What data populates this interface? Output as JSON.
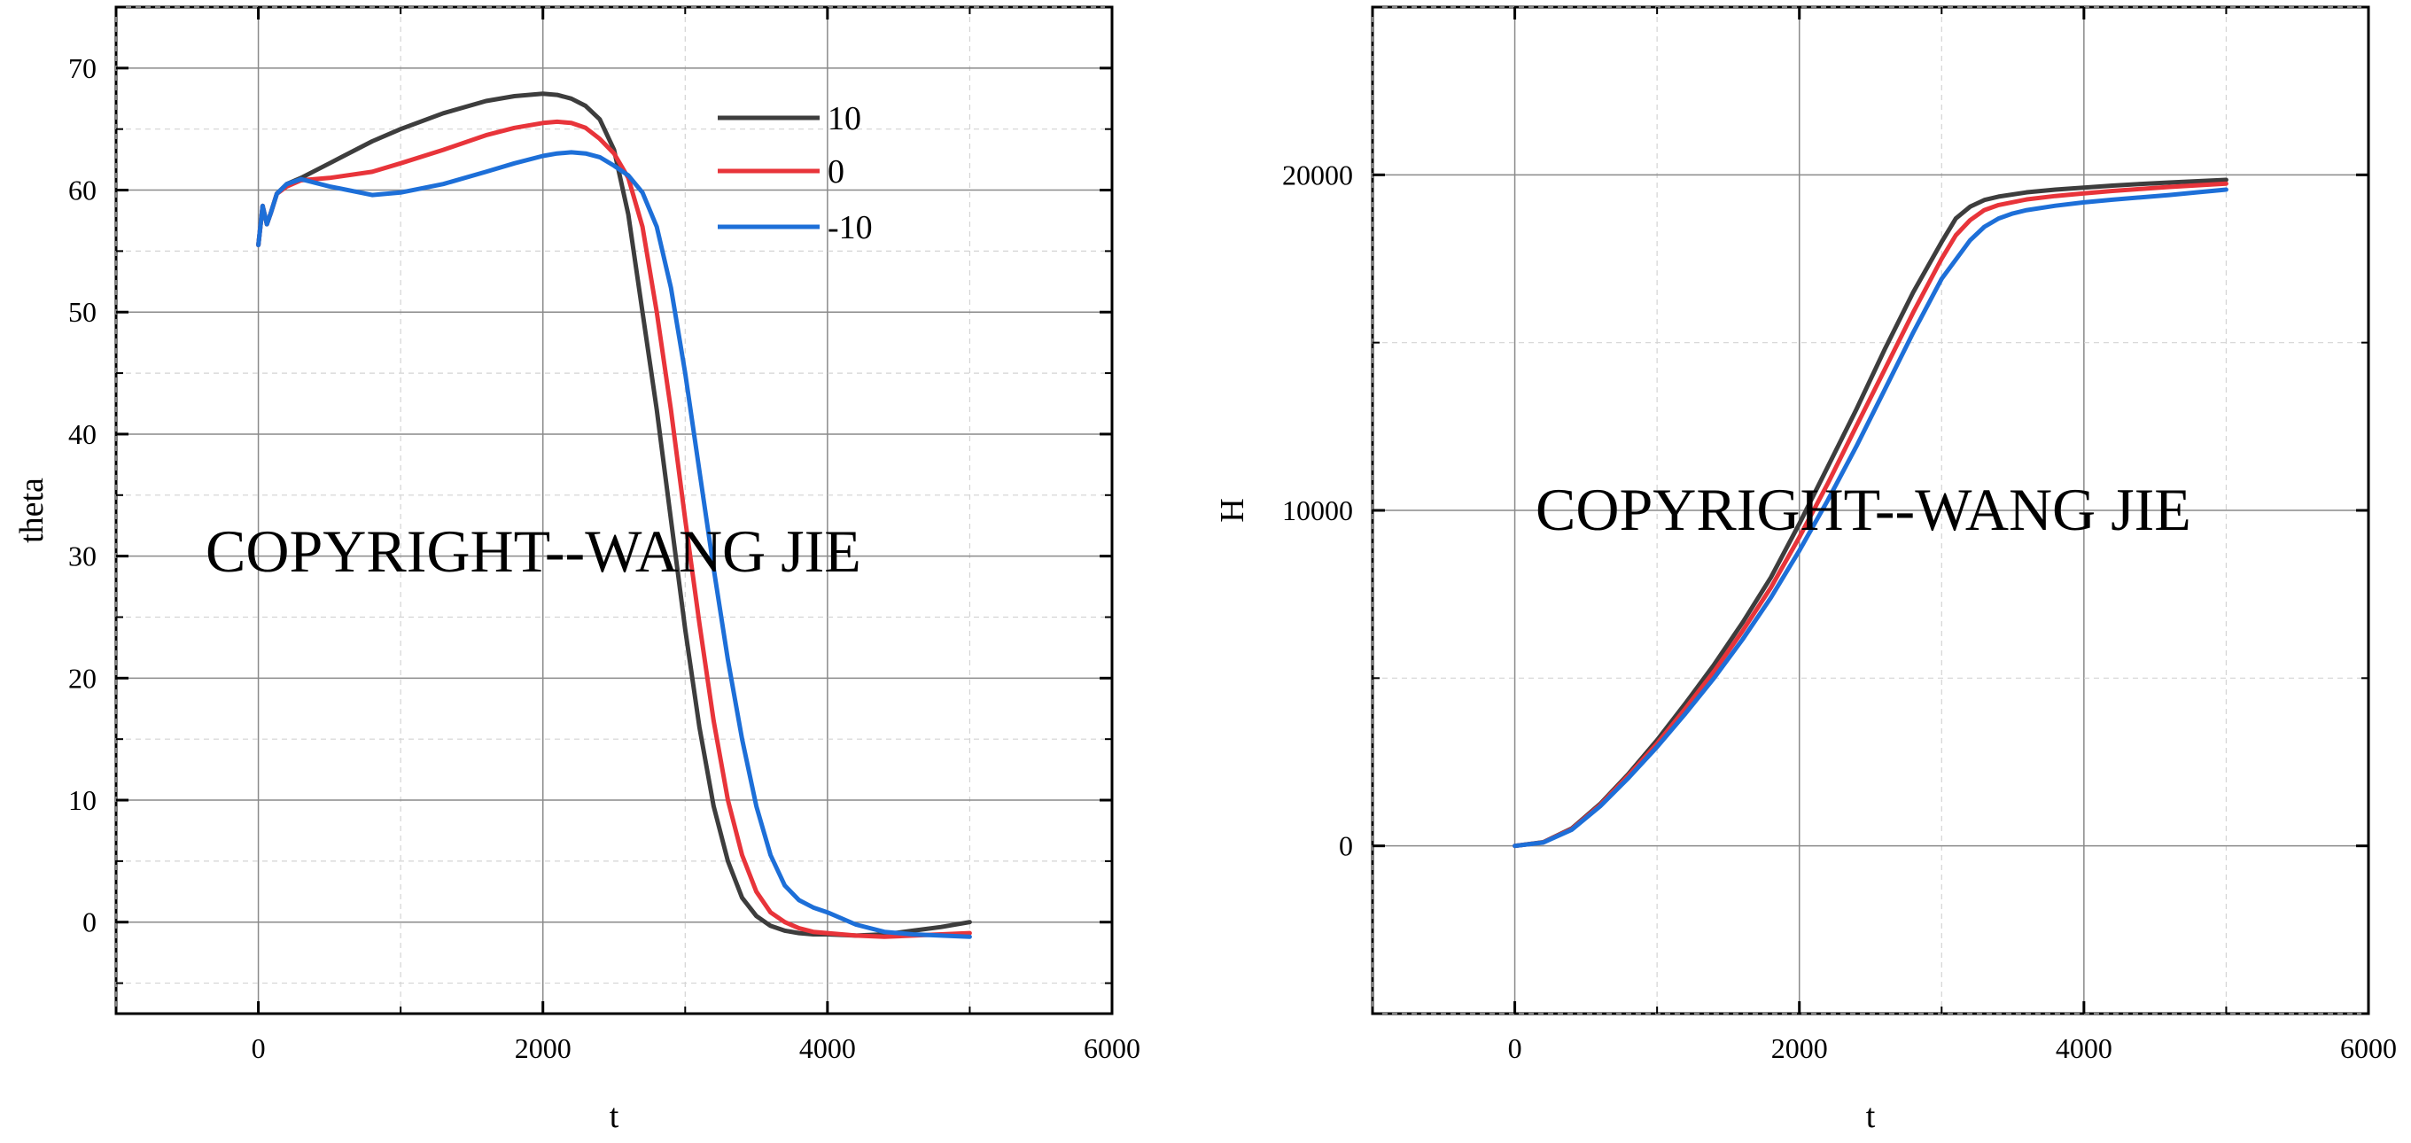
{
  "watermark": "COPYRIGHT--WANG JIE",
  "chart_data": [
    {
      "type": "line",
      "xlabel": "t",
      "ylabel": "theta",
      "xlim": [
        -1000,
        6000
      ],
      "ylim": [
        -7.5,
        75
      ],
      "xticks": [
        0,
        2000,
        4000,
        6000
      ],
      "yticks": [
        0,
        10,
        20,
        30,
        40,
        50,
        60,
        70
      ],
      "grid": true,
      "legend_position": "top-right",
      "series": [
        {
          "name": "10",
          "color": "#3d3d3d",
          "x": [
            0,
            30,
            60,
            90,
            130,
            200,
            300,
            500,
            800,
            1000,
            1300,
            1600,
            1800,
            2000,
            2100,
            2200,
            2300,
            2400,
            2500,
            2600,
            2700,
            2800,
            2900,
            3000,
            3100,
            3200,
            3300,
            3400,
            3500,
            3600,
            3700,
            3800,
            3900,
            4000,
            4200,
            4400,
            4600,
            4800,
            5000
          ],
          "y": [
            55.5,
            58.7,
            57.2,
            58.2,
            59.7,
            60.5,
            61.0,
            62.2,
            64.0,
            65.0,
            66.3,
            67.3,
            67.7,
            67.9,
            67.8,
            67.5,
            66.9,
            65.8,
            63.3,
            58.0,
            50.0,
            42.0,
            33.0,
            24.0,
            16.0,
            9.5,
            5.0,
            2.0,
            0.5,
            -0.3,
            -0.7,
            -0.9,
            -1.0,
            -1.0,
            -1.1,
            -1.0,
            -0.7,
            -0.4,
            0.0
          ]
        },
        {
          "name": "0",
          "color": "#e8343a",
          "x": [
            0,
            30,
            60,
            90,
            130,
            200,
            300,
            500,
            800,
            1000,
            1300,
            1600,
            1800,
            2000,
            2100,
            2200,
            2300,
            2400,
            2500,
            2600,
            2700,
            2800,
            2900,
            3000,
            3100,
            3200,
            3300,
            3400,
            3500,
            3600,
            3700,
            3800,
            3900,
            4000,
            4200,
            4400,
            4600,
            4800,
            5000
          ],
          "y": [
            55.5,
            58.7,
            57.2,
            58.2,
            59.7,
            60.3,
            60.8,
            61.0,
            61.5,
            62.2,
            63.3,
            64.5,
            65.1,
            65.5,
            65.6,
            65.5,
            65.1,
            64.2,
            63.0,
            61.0,
            57.0,
            50.0,
            42.0,
            33.0,
            24.5,
            16.5,
            10.0,
            5.5,
            2.5,
            0.8,
            0.0,
            -0.5,
            -0.8,
            -0.9,
            -1.1,
            -1.2,
            -1.1,
            -1.0,
            -0.9
          ]
        },
        {
          "name": "-10",
          "color": "#1d6fd8",
          "x": [
            0,
            30,
            60,
            90,
            130,
            200,
            300,
            500,
            800,
            1000,
            1300,
            1600,
            1800,
            2000,
            2100,
            2200,
            2300,
            2400,
            2500,
            2600,
            2700,
            2800,
            2900,
            3000,
            3100,
            3200,
            3300,
            3400,
            3500,
            3600,
            3700,
            3800,
            3900,
            4000,
            4200,
            4400,
            4600,
            4800,
            5000
          ],
          "y": [
            55.5,
            58.7,
            57.2,
            58.2,
            59.7,
            60.5,
            60.9,
            60.3,
            59.6,
            59.8,
            60.5,
            61.5,
            62.2,
            62.8,
            63.0,
            63.1,
            63.0,
            62.7,
            62.0,
            61.2,
            59.8,
            57.0,
            52.0,
            45.0,
            37.0,
            29.0,
            21.5,
            15.0,
            9.5,
            5.5,
            3.0,
            1.8,
            1.2,
            0.8,
            -0.2,
            -0.8,
            -1.0,
            -1.1,
            -1.2
          ]
        }
      ]
    },
    {
      "type": "line",
      "xlabel": "t",
      "ylabel": "H",
      "xlim": [
        -1000,
        6000
      ],
      "ylim": [
        -5000,
        25000
      ],
      "xticks": [
        0,
        2000,
        4000,
        6000
      ],
      "yticks": [
        0,
        10000,
        20000
      ],
      "grid": true,
      "series": [
        {
          "color": "#3d3d3d",
          "x": [
            0,
            200,
            400,
            600,
            800,
            1000,
            1200,
            1400,
            1600,
            1800,
            2000,
            2200,
            2400,
            2600,
            2800,
            3000,
            3100,
            3200,
            3300,
            3400,
            3600,
            3800,
            4000,
            4200,
            4400,
            4600,
            4800,
            5000
          ],
          "y": [
            0,
            110,
            520,
            1250,
            2150,
            3150,
            4250,
            5400,
            6650,
            8000,
            9600,
            11300,
            13000,
            14800,
            16500,
            18000,
            18700,
            19050,
            19250,
            19350,
            19480,
            19560,
            19620,
            19680,
            19730,
            19770,
            19810,
            19850
          ]
        },
        {
          "color": "#e8343a",
          "x": [
            0,
            200,
            400,
            600,
            800,
            1000,
            1200,
            1400,
            1600,
            1800,
            2000,
            2200,
            2400,
            2600,
            2800,
            3000,
            3100,
            3200,
            3300,
            3400,
            3600,
            3800,
            4000,
            4200,
            4400,
            4600,
            4800,
            5000
          ],
          "y": [
            0,
            105,
            500,
            1220,
            2100,
            3050,
            4100,
            5200,
            6400,
            7700,
            9200,
            10800,
            12500,
            14200,
            15900,
            17500,
            18200,
            18650,
            18950,
            19100,
            19270,
            19370,
            19450,
            19520,
            19580,
            19640,
            19690,
            19740
          ]
        },
        {
          "color": "#1d6fd8",
          "x": [
            0,
            200,
            400,
            600,
            800,
            1000,
            1200,
            1400,
            1600,
            1800,
            2000,
            2200,
            2400,
            2600,
            2800,
            3000,
            3200,
            3300,
            3400,
            3500,
            3600,
            3800,
            4000,
            4200,
            4400,
            4600,
            4800,
            5000
          ],
          "y": [
            0,
            100,
            480,
            1180,
            2030,
            2950,
            3950,
            5000,
            6150,
            7400,
            8800,
            10300,
            11900,
            13600,
            15300,
            16900,
            18050,
            18450,
            18700,
            18850,
            18950,
            19080,
            19180,
            19260,
            19330,
            19400,
            19480,
            19560
          ]
        }
      ]
    }
  ]
}
